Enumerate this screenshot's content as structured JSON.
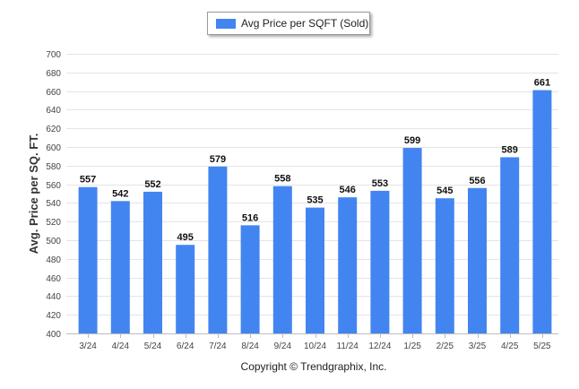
{
  "chart_data": {
    "type": "bar",
    "legend": "Avg Price per SQFT (Sold)",
    "ylabel": "Avg. Price per SQ. FT.",
    "xlabel": "Copyright © Trendgraphix, Inc.",
    "categories": [
      "3/24",
      "4/24",
      "5/24",
      "6/24",
      "7/24",
      "8/24",
      "9/24",
      "10/24",
      "11/24",
      "12/24",
      "1/25",
      "2/25",
      "3/25",
      "4/25",
      "5/25"
    ],
    "values": [
      557,
      542,
      552,
      495,
      579,
      516,
      558,
      535,
      546,
      553,
      599,
      545,
      556,
      589,
      661
    ],
    "ylim": [
      400,
      700
    ],
    "yticks": [
      400,
      420,
      440,
      460,
      480,
      500,
      520,
      540,
      560,
      580,
      600,
      620,
      640,
      660,
      680,
      700
    ],
    "grid": true,
    "legend_position": "top-center",
    "bar_color": "#4385f0"
  }
}
